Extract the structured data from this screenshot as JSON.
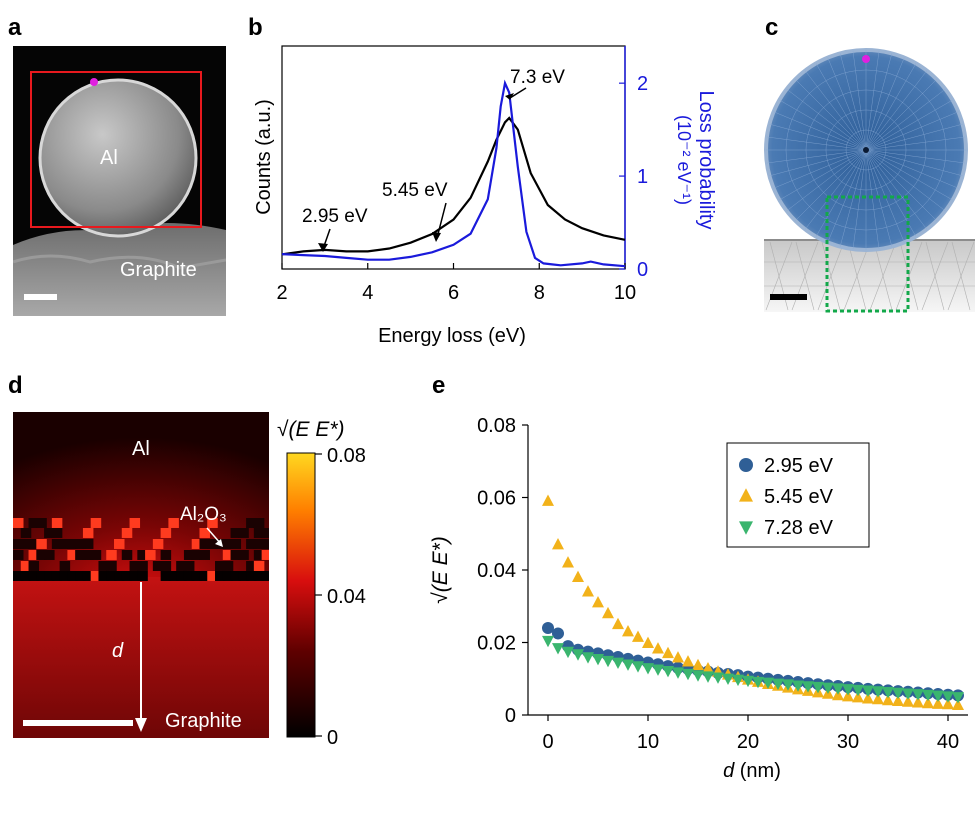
{
  "panels": {
    "a": {
      "label": "a",
      "particle_label": "Al",
      "substrate_label": "Graphite"
    },
    "b": {
      "label": "b",
      "ylabel_left": "Counts (a.u.)",
      "ylabel_right_line1": "Loss probability",
      "ylabel_right_line2": "(10⁻² eV⁻¹)",
      "peak_labels": [
        "2.95 eV",
        "5.45 eV",
        "7.3 eV"
      ]
    },
    "c": {
      "label": "c"
    },
    "d": {
      "label": "d",
      "al_label": "Al",
      "oxide_label": "Al₂O₃",
      "d_label": "d",
      "substrate_label": "Graphite",
      "colorbar_title": "√(E E*)",
      "colorbar_ticks": [
        "0.08",
        "0.04",
        "0"
      ]
    },
    "e": {
      "label": "e"
    }
  },
  "colors": {
    "scalebar_box": "#e8191e",
    "marker_dot": "#e020e0",
    "spectrum_counts": "#000000",
    "spectrum_loss": "#1a1adb",
    "sphere_fill": "#3a6ea8",
    "mesh_box": "#12a84a",
    "series_295": "#2f5f96",
    "series_545": "#f2b21a",
    "series_728": "#3ab56e"
  },
  "chart_data": [
    {
      "panel": "b",
      "type": "line",
      "title": "",
      "xlabel": "Energy loss (eV)",
      "ylabel": "Counts (a.u.)",
      "ylabel_right": "Loss probability (10⁻² eV⁻¹)",
      "xlim": [
        2,
        10
      ],
      "ylim_right": [
        0,
        2.4
      ],
      "x_ticks": [
        "2",
        "4",
        "6",
        "8",
        "10"
      ],
      "y_right_ticks": [
        "0",
        "1",
        "2"
      ],
      "series": [
        {
          "name": "Counts",
          "axis": "left",
          "x": [
            2.0,
            2.5,
            3.0,
            3.5,
            4.0,
            4.5,
            5.0,
            5.5,
            6.0,
            6.4,
            6.8,
            7.0,
            7.2,
            7.3,
            7.5,
            7.8,
            8.2,
            8.6,
            9.0,
            9.5,
            10.0
          ],
          "values": [
            0.06,
            0.08,
            0.09,
            0.08,
            0.08,
            0.1,
            0.14,
            0.2,
            0.3,
            0.45,
            0.7,
            0.85,
            0.97,
            1.0,
            0.92,
            0.62,
            0.4,
            0.3,
            0.24,
            0.19,
            0.16
          ]
        },
        {
          "name": "Loss probability",
          "axis": "right",
          "x": [
            2.0,
            2.5,
            3.0,
            3.5,
            4.0,
            4.5,
            5.0,
            5.5,
            6.0,
            6.4,
            6.8,
            7.0,
            7.1,
            7.2,
            7.3,
            7.5,
            7.7,
            7.9,
            8.1,
            8.3,
            8.5,
            9.0,
            9.2,
            9.5,
            10.0
          ],
          "values": [
            0.16,
            0.15,
            0.14,
            0.12,
            0.1,
            0.1,
            0.13,
            0.18,
            0.26,
            0.38,
            0.75,
            1.3,
            1.75,
            2.0,
            1.9,
            1.1,
            0.4,
            0.12,
            0.06,
            0.05,
            0.04,
            0.06,
            0.08,
            0.05,
            0.03
          ]
        }
      ],
      "annotations": [
        {
          "text": "2.95 eV",
          "x": 2.95
        },
        {
          "text": "5.45 eV",
          "x": 5.45
        },
        {
          "text": "7.3 eV",
          "x": 7.3
        }
      ]
    },
    {
      "panel": "e",
      "type": "scatter",
      "title": "",
      "xlabel": "d (nm)",
      "ylabel": "√(E E*)",
      "xlim": [
        -2,
        42
      ],
      "ylim": [
        0,
        0.08
      ],
      "x_ticks": [
        "0",
        "10",
        "20",
        "30",
        "40"
      ],
      "y_ticks": [
        "0",
        "0.02",
        "0.04",
        "0.06",
        "0.08"
      ],
      "legend_position": "top-right",
      "series": [
        {
          "name": "2.95 eV",
          "marker": "circle",
          "x": [
            0,
            1,
            2,
            3,
            4,
            5,
            6,
            7,
            8,
            9,
            10,
            11,
            12,
            13,
            14,
            15,
            16,
            17,
            18,
            19,
            20,
            21,
            22,
            23,
            24,
            25,
            26,
            27,
            28,
            29,
            30,
            31,
            32,
            33,
            34,
            35,
            36,
            37,
            38,
            39,
            40,
            41
          ],
          "values": [
            0.024,
            0.0225,
            0.019,
            0.018,
            0.0175,
            0.017,
            0.0165,
            0.016,
            0.0155,
            0.015,
            0.0145,
            0.014,
            0.0135,
            0.013,
            0.0127,
            0.0123,
            0.012,
            0.0116,
            0.0113,
            0.011,
            0.0106,
            0.0103,
            0.01,
            0.0097,
            0.0094,
            0.0091,
            0.0088,
            0.0085,
            0.0082,
            0.008,
            0.0077,
            0.0075,
            0.0072,
            0.007,
            0.0068,
            0.0066,
            0.0064,
            0.0062,
            0.006,
            0.0058,
            0.0056,
            0.0054
          ]
        },
        {
          "name": "5.45 eV",
          "marker": "triangle-up",
          "x": [
            0,
            1,
            2,
            3,
            4,
            5,
            6,
            7,
            8,
            9,
            10,
            11,
            12,
            13,
            14,
            15,
            16,
            17,
            18,
            19,
            20,
            21,
            22,
            23,
            24,
            25,
            26,
            27,
            28,
            29,
            30,
            31,
            32,
            33,
            34,
            35,
            36,
            37,
            38,
            39,
            40,
            41
          ],
          "values": [
            0.059,
            0.047,
            0.042,
            0.038,
            0.034,
            0.031,
            0.028,
            0.025,
            0.023,
            0.0215,
            0.0198,
            0.0183,
            0.017,
            0.0158,
            0.0147,
            0.0137,
            0.0128,
            0.0119,
            0.0111,
            0.0104,
            0.0097,
            0.0091,
            0.0085,
            0.008,
            0.0075,
            0.007,
            0.0066,
            0.0062,
            0.0058,
            0.0054,
            0.0051,
            0.0048,
            0.0045,
            0.0043,
            0.004,
            0.0038,
            0.0036,
            0.0034,
            0.0032,
            0.003,
            0.0029,
            0.0027
          ]
        },
        {
          "name": "7.28 eV",
          "marker": "triangle-down",
          "x": [
            0,
            1,
            2,
            3,
            4,
            5,
            6,
            7,
            8,
            9,
            10,
            11,
            12,
            13,
            14,
            15,
            16,
            17,
            18,
            19,
            20,
            21,
            22,
            23,
            24,
            25,
            26,
            27,
            28,
            29,
            30,
            31,
            32,
            33,
            34,
            35,
            36,
            37,
            38,
            39,
            40,
            41
          ],
          "values": [
            0.0205,
            0.0185,
            0.0175,
            0.0168,
            0.016,
            0.0155,
            0.015,
            0.0145,
            0.014,
            0.0135,
            0.013,
            0.0126,
            0.0122,
            0.0118,
            0.0114,
            0.011,
            0.0107,
            0.0104,
            0.0101,
            0.0098,
            0.0095,
            0.0092,
            0.009,
            0.0087,
            0.0085,
            0.0082,
            0.008,
            0.0078,
            0.0076,
            0.0074,
            0.0072,
            0.007,
            0.0068,
            0.0066,
            0.0064,
            0.0062,
            0.006,
            0.0058,
            0.0056,
            0.0054,
            0.0052,
            0.005
          ]
        }
      ]
    }
  ]
}
